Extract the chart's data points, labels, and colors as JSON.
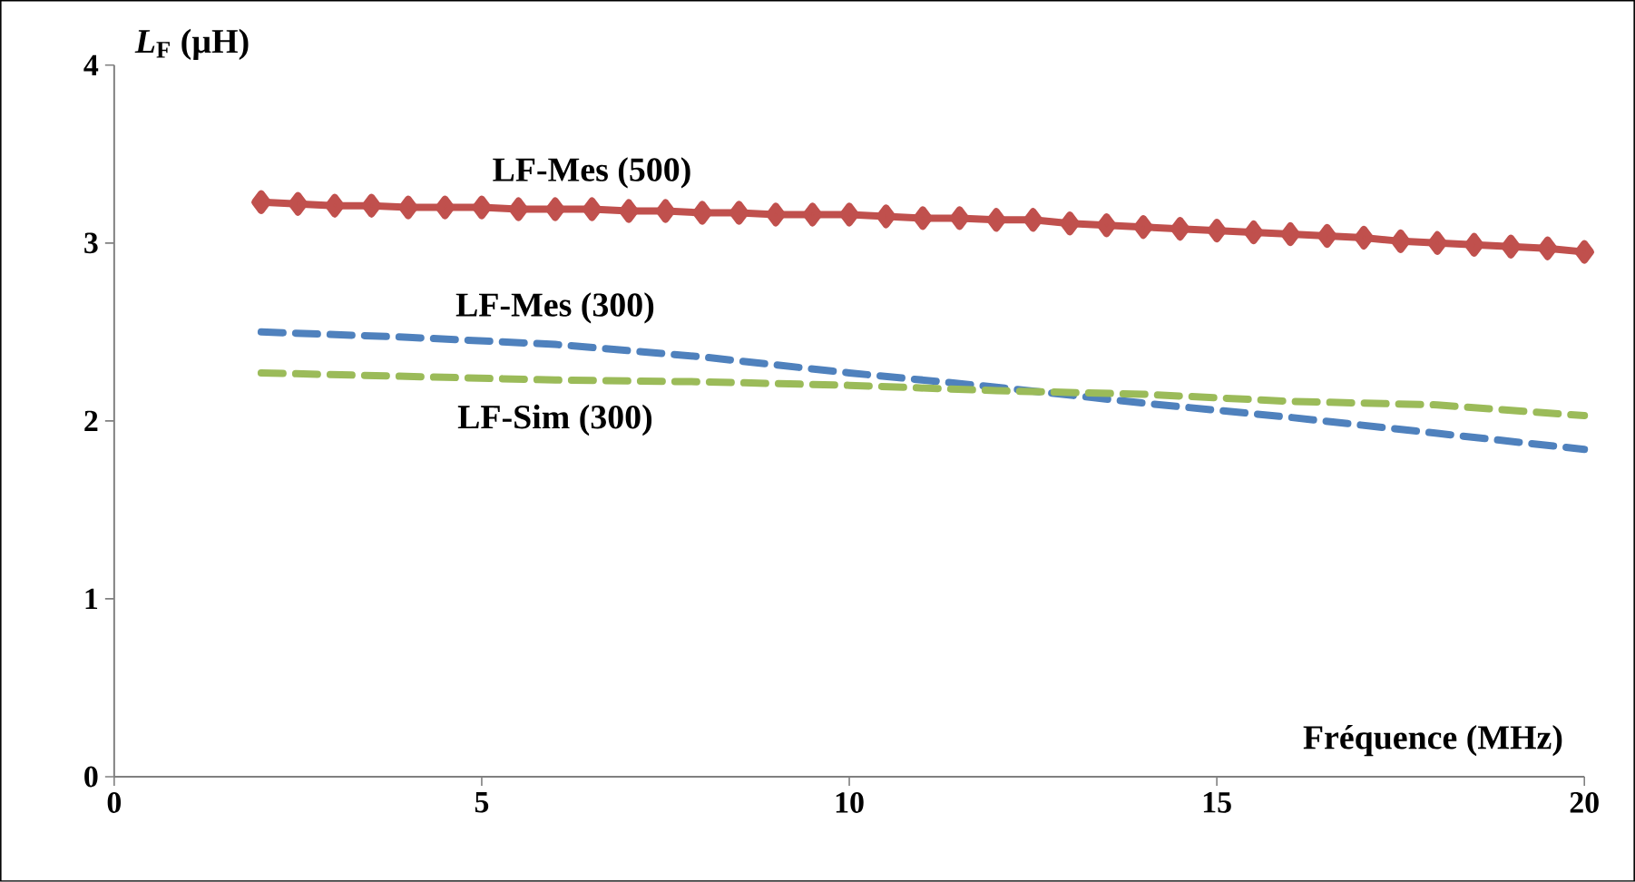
{
  "chart_data": {
    "type": "line",
    "xlabel": "Fréquence (MHz)",
    "ylabel": "*L*$_{F}$ (µH)",
    "xlim": [
      0,
      20
    ],
    "xticks": [
      0,
      5,
      10,
      15,
      20
    ],
    "ylim": [
      0,
      4
    ],
    "yticks": [
      0,
      1,
      2,
      3,
      4
    ],
    "grid": false,
    "legend": false,
    "series": [
      {
        "name": "LF-Mes (500)",
        "color": "#c0504d",
        "marker": "diamond",
        "line_style": "solid",
        "x": [
          2,
          2.5,
          3,
          3.5,
          4,
          4.5,
          5,
          5.5,
          6,
          6.5,
          7,
          7.5,
          8,
          8.5,
          9,
          9.5,
          10,
          10.5,
          11,
          11.5,
          12,
          12.5,
          13,
          13.5,
          14,
          14.5,
          15,
          15.5,
          16,
          16.5,
          17,
          17.5,
          18,
          18.5,
          19,
          19.5,
          20
        ],
        "values": [
          3.23,
          3.22,
          3.21,
          3.21,
          3.2,
          3.2,
          3.2,
          3.19,
          3.19,
          3.19,
          3.18,
          3.18,
          3.17,
          3.17,
          3.16,
          3.16,
          3.16,
          3.15,
          3.14,
          3.14,
          3.13,
          3.13,
          3.11,
          3.1,
          3.09,
          3.08,
          3.07,
          3.06,
          3.05,
          3.04,
          3.03,
          3.01,
          3.0,
          2.99,
          2.98,
          2.97,
          2.95
        ]
      },
      {
        "name": "LF-Mes (300)",
        "color": "#4f81bd",
        "marker": "none",
        "line_style": "dashed",
        "x": [
          2,
          4,
          6,
          8,
          10,
          12,
          14,
          16,
          18,
          20
        ],
        "values": [
          2.5,
          2.47,
          2.43,
          2.36,
          2.27,
          2.19,
          2.1,
          2.02,
          1.93,
          1.84
        ]
      },
      {
        "name": "LF-Sim (300)",
        "color": "#9bbb59",
        "marker": "none",
        "line_style": "dashed",
        "x": [
          2,
          4,
          6,
          8,
          10,
          12,
          14,
          16,
          18,
          20
        ],
        "values": [
          2.27,
          2.25,
          2.23,
          2.22,
          2.2,
          2.17,
          2.15,
          2.11,
          2.09,
          2.03
        ]
      }
    ]
  }
}
